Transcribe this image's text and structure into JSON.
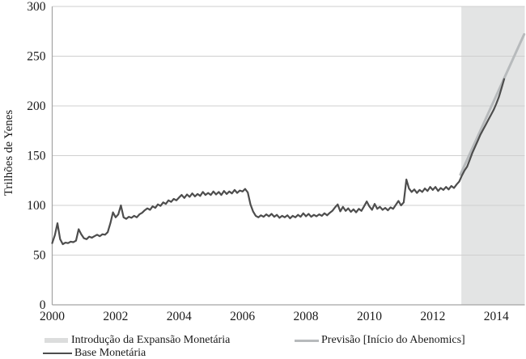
{
  "chart_data": {
    "type": "line",
    "title": "",
    "ylabel": "Trilhões de Yenes",
    "xlabel": "",
    "x_domain": [
      2000,
      2014.9
    ],
    "ylim": [
      0,
      300
    ],
    "x_ticks": [
      2000,
      2002,
      2004,
      2006,
      2008,
      2010,
      2012,
      2014
    ],
    "y_ticks": [
      0,
      50,
      100,
      150,
      200,
      250,
      300
    ],
    "grid": "horizontal",
    "legend_position": "bottom",
    "shaded_region": {
      "label": "Introdução da Expansão Monetária",
      "from": 2012.9,
      "to": 2014.9
    },
    "series": [
      {
        "name": "Base Monetária",
        "start_year": 2000,
        "frequency": "monthly",
        "values": [
          62,
          70,
          82,
          66,
          61,
          62.5,
          62,
          63.5,
          63,
          64.5,
          76,
          71,
          67,
          66,
          68.5,
          67.5,
          69,
          70.5,
          69,
          71,
          70.5,
          73,
          82,
          93,
          88,
          91,
          100,
          88,
          86.5,
          88.5,
          87.5,
          89.5,
          88,
          91,
          92.5,
          95,
          97,
          95.5,
          99,
          97.5,
          101,
          99.5,
          103,
          101.5,
          105,
          103.5,
          106.5,
          105,
          108,
          110.5,
          107.5,
          111,
          108.5,
          112,
          109,
          111.5,
          109.5,
          113.5,
          110.5,
          112.5,
          110.5,
          114,
          111,
          113.5,
          110.5,
          114.5,
          111.5,
          114,
          112,
          115.5,
          112.5,
          115,
          114,
          116.5,
          113,
          101,
          94,
          89.5,
          88,
          90,
          88.5,
          91,
          89,
          91.5,
          88.5,
          90.5,
          87.5,
          89.5,
          88,
          90,
          87,
          89.5,
          88,
          90.5,
          88.5,
          92,
          89,
          91.5,
          88.5,
          90.5,
          89,
          91,
          89.5,
          92,
          90,
          92.5,
          94.5,
          98,
          101,
          94,
          98.5,
          94.5,
          97,
          93.5,
          96,
          93,
          96.5,
          94.5,
          99,
          104,
          99,
          95.5,
          101.5,
          96.5,
          98.5,
          95.5,
          97.5,
          95,
          98,
          96.5,
          100.5,
          104.5,
          100,
          103,
          126,
          117,
          113.5,
          116,
          112.5,
          115.5,
          113.5,
          117,
          114.5,
          118.5,
          115.5,
          118.5,
          114.5,
          117.5,
          115.5,
          118.5,
          116,
          119.5,
          117.5,
          121,
          124,
          130,
          135,
          139,
          146,
          153,
          159,
          165,
          171,
          176,
          181,
          186,
          191,
          196,
          202,
          209,
          218,
          227
        ]
      },
      {
        "name": "Previsão [Início do Abenomics]",
        "points": [
          {
            "x": 2012.87,
            "y": 131
          },
          {
            "x": 2014.88,
            "y": 272
          }
        ]
      }
    ],
    "colors": {
      "base_line": "#4d4d4d",
      "forecast_line": "#b7babc",
      "shade": "#e3e4e4",
      "grid": "#cfcfcf",
      "axis": "#a3a3a3",
      "text": "#1a1a1a"
    }
  },
  "legend": {
    "expansion": "Introdução da Expansão Monetária",
    "base": "Base Monetária",
    "forecast": "Previsão [Início do Abenomics]"
  }
}
